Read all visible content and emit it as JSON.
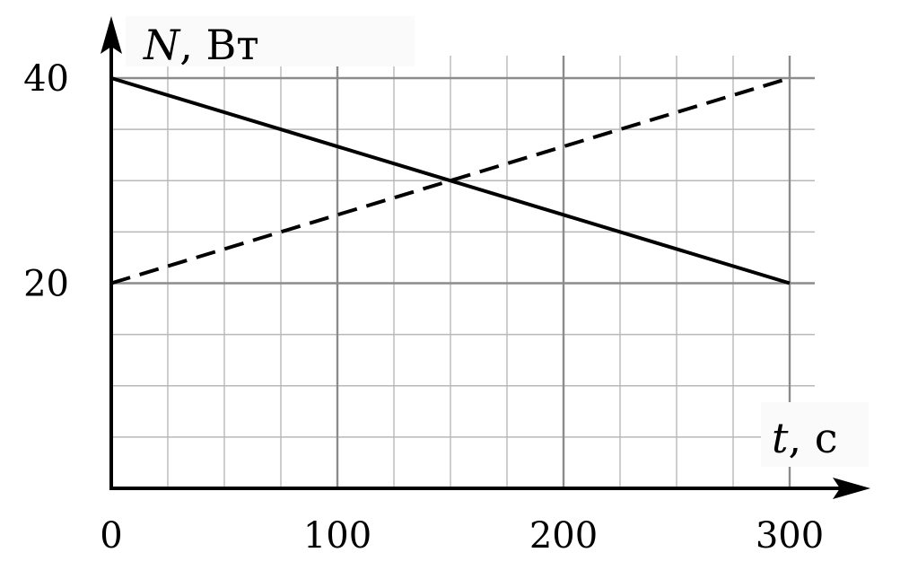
{
  "chart_data": {
    "type": "line",
    "xlabel_var": "t",
    "xlabel_unit": ", с",
    "ylabel_var": "N",
    "ylabel_unit": ", Вт",
    "xlim": [
      0,
      310
    ],
    "ylim": [
      0,
      45
    ],
    "x_ticks": [
      0,
      100,
      200,
      300
    ],
    "x_tick_labels": [
      "0",
      "100",
      "200",
      "300"
    ],
    "y_ticks": [
      20,
      40
    ],
    "y_tick_labels": [
      "20",
      "40"
    ],
    "grid": true,
    "series": [
      {
        "style": "solid",
        "x": [
          0,
          300
        ],
        "y": [
          40,
          20
        ],
        "color": "#000000"
      },
      {
        "style": "dashed",
        "x": [
          0,
          300
        ],
        "y": [
          20,
          40
        ],
        "color": "#000000"
      }
    ]
  }
}
